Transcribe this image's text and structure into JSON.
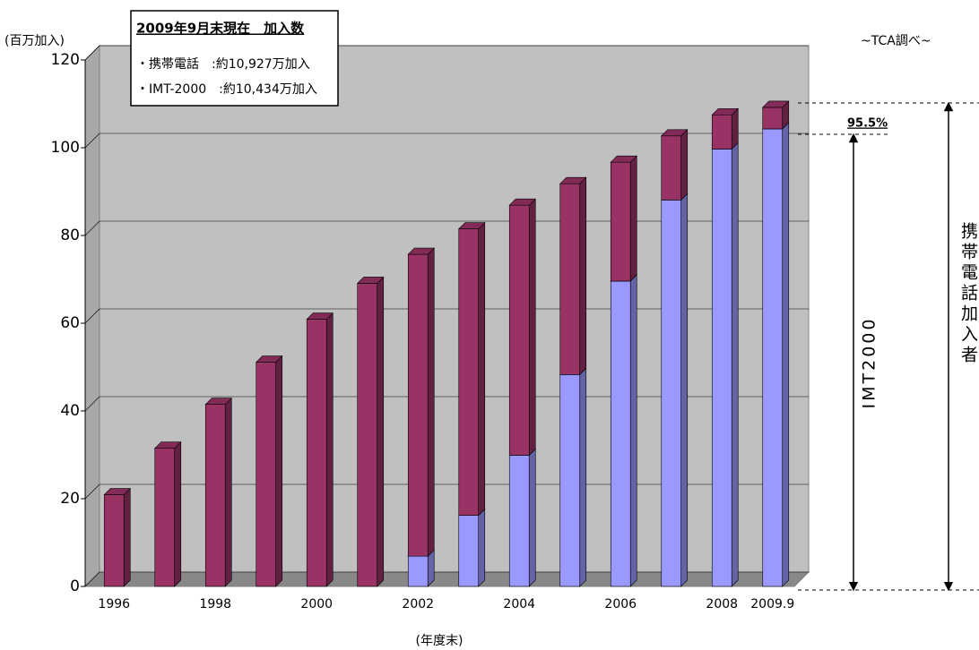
{
  "chart_data": {
    "type": "bar",
    "stacked": true,
    "y_unit_label": "(百万加入)",
    "source": "~TCA調べ~",
    "x_label": "(年度末)",
    "info_box": {
      "title": "2009年9月末現在　加入数",
      "lines": [
        "・携帯電話　:約10,927万加入",
        "・IMT-2000　:約10,434万加入"
      ]
    },
    "share_label": "95.5%",
    "total_label": "携帯電話加入者",
    "categories": [
      "1996",
      null,
      "1998",
      null,
      "2000",
      null,
      "2002",
      null,
      "2004",
      null,
      "2006",
      null,
      "2008",
      "2009.9"
    ],
    "series": [
      {
        "name": "IMT2000",
        "color": "#9999ff",
        "values": [
          null,
          null,
          null,
          null,
          null,
          null,
          6.9,
          16.2,
          29.9,
          48.3,
          69.6,
          88.1,
          99.7,
          104.3
        ]
      },
      {
        "color": "#993366",
        "values": [
          20.9,
          31.5,
          41.5,
          51.1,
          60.9,
          69.1,
          68.8,
          65.3,
          57.0,
          43.5,
          27.1,
          14.6,
          7.8,
          4.9
        ]
      }
    ],
    "ylim": [
      0,
      120
    ],
    "yticks": [
      0,
      20,
      40,
      60,
      80,
      100,
      120
    ],
    "grid": true
  }
}
